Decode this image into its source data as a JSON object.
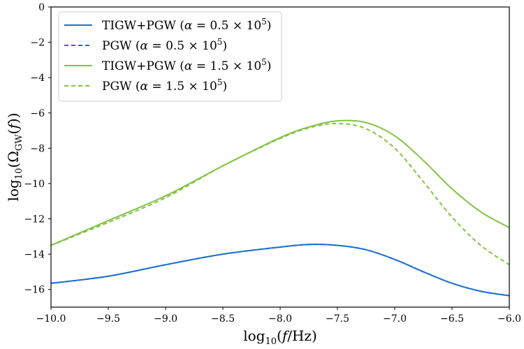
{
  "chart_data": {
    "type": "line",
    "title": "",
    "xlabel": "log10(f/Hz)",
    "ylabel": "log10(ΩGW(f))",
    "xlim": [
      -10.0,
      -6.0
    ],
    "ylim": [
      -17.0,
      0.0
    ],
    "grid": false,
    "legend_position": "top-left",
    "x_ticks": [
      -10.0,
      -9.5,
      -9.0,
      -8.5,
      -8.0,
      -7.5,
      -7.0,
      -6.5,
      -6.0
    ],
    "x_tick_labels": [
      "−10.0",
      "−9.5",
      "−9.0",
      "−8.5",
      "−8.0",
      "−7.5",
      "−7.0",
      "−6.5",
      "−6.0"
    ],
    "y_ticks": [
      0,
      -2,
      -4,
      -6,
      -8,
      -10,
      -12,
      -14,
      -16
    ],
    "y_tick_labels": [
      "0",
      "−2",
      "−4",
      "−6",
      "−8",
      "−10",
      "−12",
      "−14",
      "−16"
    ],
    "x": [
      -10.0,
      -9.5,
      -9.0,
      -8.5,
      -8.0,
      -7.75,
      -7.5,
      -7.25,
      -7.0,
      -6.75,
      -6.5,
      -6.25,
      -6.0
    ],
    "series": [
      {
        "name": "TIGW+PGW (α = 0.5 × 10^5)",
        "color": "#1f6fd0",
        "style": "solid",
        "values": [
          -15.65,
          -15.25,
          -14.6,
          -14.0,
          -13.6,
          -13.45,
          -13.5,
          -13.75,
          -14.3,
          -15.0,
          -15.65,
          -16.1,
          -16.35
        ]
      },
      {
        "name": "PGW (α = 0.5 × 10^5)",
        "color": "#1f6fd0",
        "style": "dashed",
        "values": [
          -15.65,
          -15.25,
          -14.6,
          -14.0,
          -13.6,
          -13.45,
          -13.5,
          -13.75,
          -14.3,
          -15.0,
          -15.65,
          -16.1,
          -16.35
        ]
      },
      {
        "name": "TIGW+PGW (α = 1.5 × 10^5)",
        "color": "#82c341",
        "style": "solid",
        "values": [
          -13.5,
          -12.1,
          -10.7,
          -9.0,
          -7.4,
          -6.8,
          -6.45,
          -6.55,
          -7.3,
          -8.7,
          -10.3,
          -11.6,
          -12.5
        ]
      },
      {
        "name": "PGW (α = 1.5 × 10^5)",
        "color": "#82c341",
        "style": "dashed",
        "values": [
          -13.5,
          -12.2,
          -10.8,
          -9.0,
          -7.45,
          -6.85,
          -6.6,
          -6.9,
          -8.0,
          -9.9,
          -11.9,
          -13.5,
          -14.6
        ]
      }
    ],
    "legend": [
      {
        "label_text": "TIGW+PGW (",
        "alpha_value": "0.5",
        "label_end": ")",
        "color": "#1f6fd0",
        "style": "solid"
      },
      {
        "label_text": "PGW (",
        "alpha_value": "0.5",
        "label_end": ")",
        "color": "#1f6fd0",
        "style": "dashed"
      },
      {
        "label_text": "TIGW+PGW (",
        "alpha_value": "1.5",
        "label_end": ")",
        "color": "#82c341",
        "style": "solid"
      },
      {
        "label_text": "PGW (",
        "alpha_value": "1.5",
        "label_end": ")",
        "color": "#82c341",
        "style": "dashed"
      }
    ],
    "legend_symbols": {
      "alpha": "α",
      "equals": " = ",
      "times": " × 10",
      "exponent": "5"
    }
  }
}
